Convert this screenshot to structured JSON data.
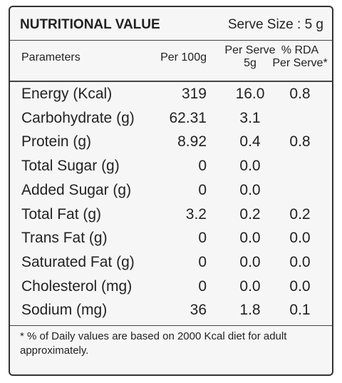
{
  "header": {
    "title": "NUTRITIONAL VALUE",
    "serve_size": "Serve Size : 5 g"
  },
  "table": {
    "columns": [
      [
        "Parameters"
      ],
      [
        "Per 100g"
      ],
      [
        "Per Serve",
        "5g"
      ],
      [
        "% RDA",
        "Per Serve*"
      ]
    ],
    "rows": [
      [
        "Energy (Kcal)",
        "319",
        "16.0",
        "0.8"
      ],
      [
        "Carbohydrate (g)",
        "62.31",
        "3.1",
        null
      ],
      [
        "Protein (g)",
        "8.92",
        "0.4",
        "0.8"
      ],
      [
        "Total Sugar (g)",
        "0",
        "0.0",
        null
      ],
      [
        "Added Sugar (g)",
        "0",
        "0.0",
        null
      ],
      [
        "Total Fat (g)",
        "3.2",
        "0.2",
        "0.2"
      ],
      [
        "Trans Fat (g)",
        "0",
        "0.0",
        "0.0"
      ],
      [
        "Saturated Fat (g)",
        "0",
        "0.0",
        "0.0"
      ],
      [
        "Cholesterol (mg)",
        "0",
        "0.0",
        "0.0"
      ],
      [
        "Sodium (mg)",
        "36",
        "1.8",
        "0.1"
      ]
    ]
  },
  "footnote": "* % of Daily values are based on 2000 Kcal diet for adult approximately."
}
